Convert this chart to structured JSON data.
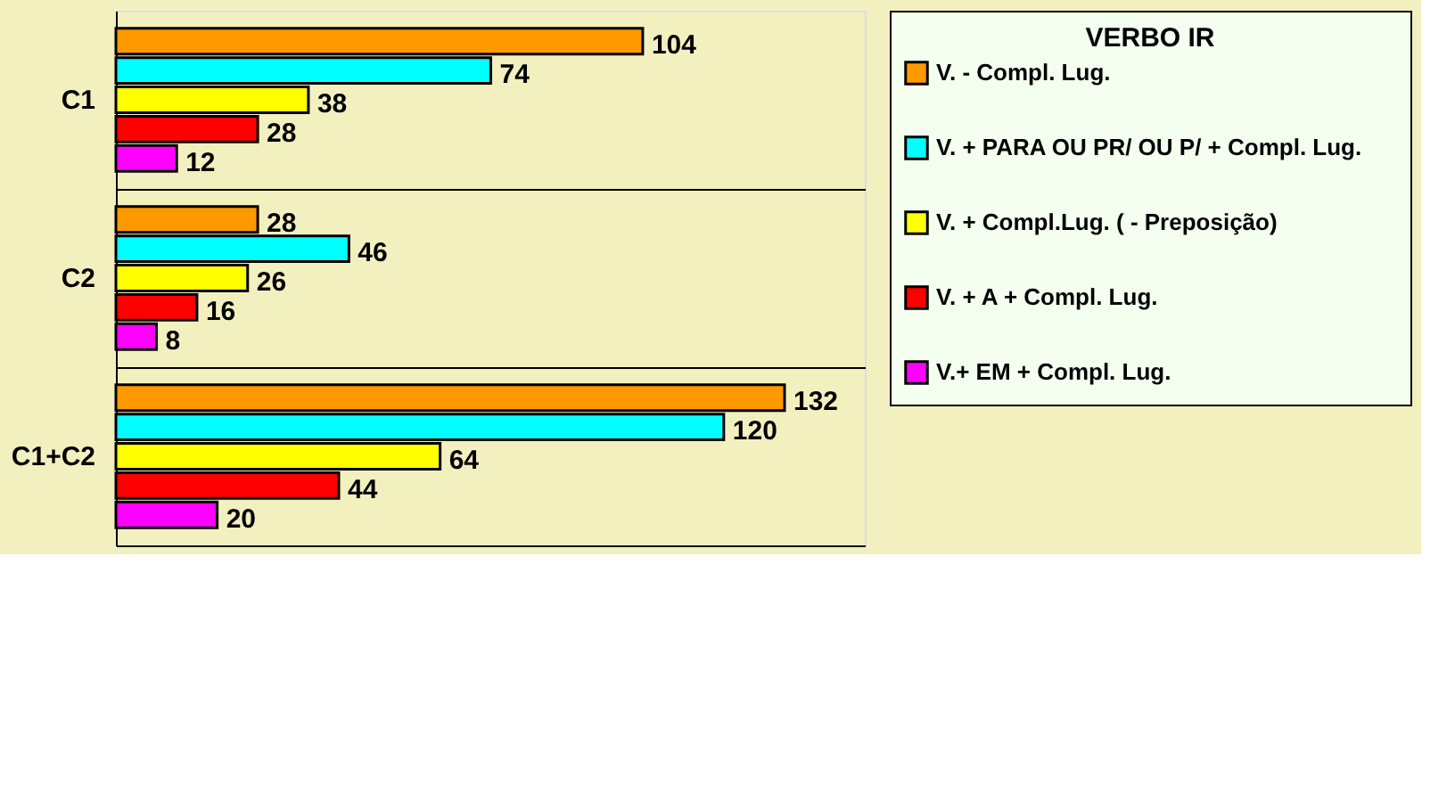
{
  "chart_data": {
    "type": "bar",
    "orientation": "horizontal",
    "legend_title": "VERBO IR",
    "legend": "right",
    "categories": [
      "C1",
      "C2",
      "C1+C2"
    ],
    "series": [
      {
        "name": "V. - Compl. Lug.",
        "color": "#ff9900",
        "values": [
          104,
          28,
          132
        ]
      },
      {
        "name": "V. + PARA OU PR/      OU P/ + Compl. Lug.",
        "color": "#00ffff",
        "values": [
          74,
          46,
          120
        ]
      },
      {
        "name": "V. + Compl.Lug. ( - Preposição)",
        "color": "#ffff00",
        "values": [
          38,
          26,
          64
        ]
      },
      {
        "name": "V. +  A + Compl. Lug.",
        "color": "#ff0000",
        "values": [
          28,
          16,
          44
        ]
      },
      {
        "name": "V.+ EM + Compl. Lug.",
        "color": "#ff00ff",
        "values": [
          12,
          8,
          20
        ]
      }
    ],
    "data_labels": true,
    "grid": "y"
  }
}
